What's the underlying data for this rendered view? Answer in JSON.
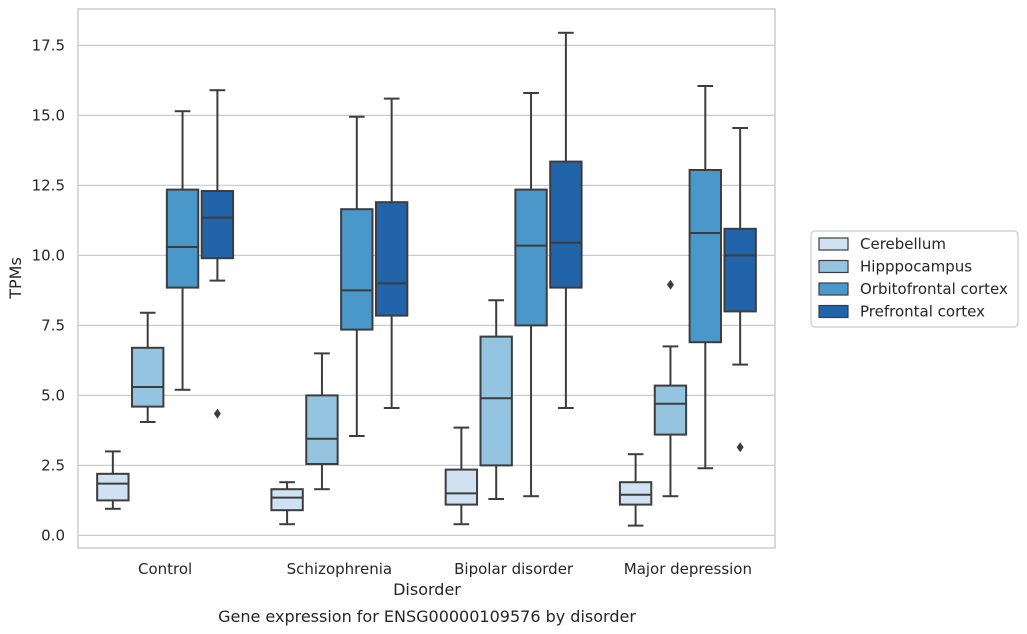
{
  "chart_data": {
    "type": "boxplot",
    "caption": "Gene expression for ENSG00000109576 by disorder",
    "xlabel": "Disorder",
    "ylabel": "TPMs",
    "ylim": [
      -0.45,
      18.8
    ],
    "yticks": [
      0.0,
      2.5,
      5.0,
      7.5,
      10.0,
      12.5,
      15.0,
      17.5
    ],
    "ytick_labels": [
      "0.0",
      "2.5",
      "5.0",
      "7.5",
      "10.0",
      "12.5",
      "15.0",
      "17.5"
    ],
    "grid": "horizontal",
    "legend_position": "outside-right",
    "categories": [
      "Control",
      "Schizophrenia",
      "Bipolar disorder",
      "Major depression"
    ],
    "series": [
      {
        "name": "Cerebellum",
        "color": "#d0e1f2",
        "boxes": [
          {
            "whislo": 0.95,
            "q1": 1.25,
            "med": 1.85,
            "q3": 2.2,
            "whishi": 3.0,
            "fliers": []
          },
          {
            "whislo": 0.4,
            "q1": 0.9,
            "med": 1.35,
            "q3": 1.65,
            "whishi": 1.9,
            "fliers": []
          },
          {
            "whislo": 0.4,
            "q1": 1.1,
            "med": 1.5,
            "q3": 2.35,
            "whishi": 3.85,
            "fliers": []
          },
          {
            "whislo": 0.35,
            "q1": 1.1,
            "med": 1.45,
            "q3": 1.9,
            "whishi": 2.9,
            "fliers": []
          }
        ]
      },
      {
        "name": "Hipppocampus",
        "color": "#94c4df",
        "boxes": [
          {
            "whislo": 4.05,
            "q1": 4.6,
            "med": 5.3,
            "q3": 6.7,
            "whishi": 7.95,
            "fliers": []
          },
          {
            "whislo": 1.65,
            "q1": 2.55,
            "med": 3.45,
            "q3": 5.0,
            "whishi": 6.5,
            "fliers": []
          },
          {
            "whislo": 1.3,
            "q1": 2.5,
            "med": 4.9,
            "q3": 7.1,
            "whishi": 8.4,
            "fliers": []
          },
          {
            "whislo": 1.4,
            "q1": 3.6,
            "med": 4.7,
            "q3": 5.35,
            "whishi": 6.75,
            "fliers": [
              8.95
            ]
          }
        ]
      },
      {
        "name": "Orbitofrontal cortex",
        "color": "#4a98c9",
        "boxes": [
          {
            "whislo": 5.2,
            "q1": 8.85,
            "med": 10.3,
            "q3": 12.35,
            "whishi": 15.15,
            "fliers": []
          },
          {
            "whislo": 3.55,
            "q1": 7.35,
            "med": 8.75,
            "q3": 11.65,
            "whishi": 14.95,
            "fliers": []
          },
          {
            "whislo": 1.4,
            "q1": 7.5,
            "med": 10.35,
            "q3": 12.35,
            "whishi": 15.8,
            "fliers": []
          },
          {
            "whislo": 2.4,
            "q1": 6.9,
            "med": 10.8,
            "q3": 13.05,
            "whishi": 16.05,
            "fliers": []
          }
        ]
      },
      {
        "name": "Prefrontal cortex",
        "color": "#2264aa",
        "boxes": [
          {
            "whislo": 9.1,
            "q1": 9.9,
            "med": 11.35,
            "q3": 12.3,
            "whishi": 15.9,
            "fliers": [
              4.35
            ]
          },
          {
            "whislo": 4.55,
            "q1": 7.85,
            "med": 9.0,
            "q3": 11.9,
            "whishi": 15.6,
            "fliers": []
          },
          {
            "whislo": 4.55,
            "q1": 8.85,
            "med": 10.45,
            "q3": 13.35,
            "whishi": 17.95,
            "fliers": []
          },
          {
            "whislo": 6.1,
            "q1": 8.0,
            "med": 10.0,
            "q3": 10.95,
            "whishi": 14.55,
            "fliers": [
              3.15
            ]
          }
        ]
      }
    ]
  }
}
